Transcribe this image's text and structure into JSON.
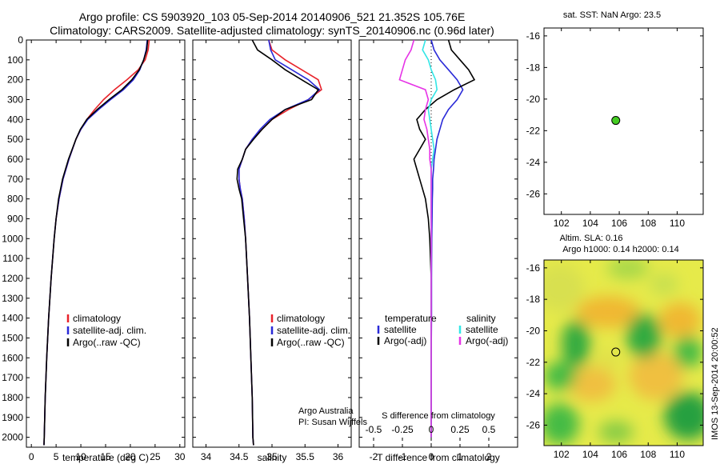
{
  "title_line1": "Argo profile: CS 5903920_103 05-Sep-2014 20140906_521 21.352S 105.76E",
  "title_line2": "Climatology: CARS2009. Satellite-adjusted climatology: synTS_20140906.nc (0.96d later)",
  "side_stamp": "IMOS 13-Sep-2014 20:00:52",
  "map1_title": "sat. SST: NaN Argo: 23.5",
  "map2_title1": "Altim. SLA: 0.16",
  "map2_title2": "Argo h1000: 0.14 h2000: 0.14",
  "credit1": "Argo Australia",
  "credit2": "PI: Susan Wijffels",
  "diff_top_label": "S difference from climatology",
  "colors": {
    "climatology": "#e8232a",
    "satellite": "#2a2ad8",
    "argo": "#000000",
    "sal_sat": "#33e6e6",
    "sal_argo": "#e633e6",
    "argo_dot": "#44cc22"
  },
  "chart_data": [
    {
      "type": "line",
      "xlabel": "temperature (deg C)",
      "ylabel": "",
      "xlim": [
        -1,
        31
      ],
      "ylim": [
        2050,
        0
      ],
      "xticks": [
        0,
        5,
        10,
        15,
        20,
        25,
        30
      ],
      "yticks": [
        0,
        100,
        200,
        300,
        400,
        500,
        600,
        700,
        800,
        900,
        1000,
        1100,
        1200,
        1300,
        1400,
        1500,
        1600,
        1700,
        1800,
        1900,
        2000
      ],
      "legend": [
        "climatology",
        "satellite-adj. clim.",
        "Argo(..raw -QC)"
      ],
      "depth": [
        0,
        50,
        100,
        150,
        200,
        250,
        300,
        350,
        400,
        450,
        500,
        600,
        700,
        800,
        900,
        1000,
        1200,
        1400,
        1600,
        1800,
        2000,
        2040
      ],
      "series": [
        {
          "name": "climatology",
          "values": [
            23.8,
            23.6,
            23.0,
            21.6,
            19.3,
            16.8,
            14.6,
            12.8,
            11.2,
            10.0,
            9.0,
            7.6,
            6.4,
            5.6,
            5.0,
            4.6,
            4.0,
            3.5,
            3.1,
            2.8,
            2.6,
            2.55
          ]
        },
        {
          "name": "satellite-adj. clim.",
          "values": [
            23.4,
            23.2,
            22.7,
            21.9,
            20.6,
            18.6,
            16.0,
            13.6,
            11.4,
            10.0,
            9.0,
            7.6,
            6.4,
            5.6,
            5.0,
            4.6,
            4.0,
            3.5,
            3.1,
            2.8,
            2.6,
            2.55
          ]
        },
        {
          "name": "Argo(..raw -QC)",
          "values": [
            23.5,
            23.3,
            22.7,
            21.8,
            20.3,
            18.3,
            15.7,
            13.3,
            11.2,
            9.9,
            9.0,
            7.5,
            6.3,
            5.5,
            5.0,
            4.6,
            4.0,
            3.5,
            3.1,
            2.8,
            2.6,
            2.55
          ]
        }
      ]
    },
    {
      "type": "line",
      "xlabel": "salinity",
      "xlim": [
        33.8,
        36.2
      ],
      "ylim": [
        2050,
        0
      ],
      "xticks": [
        34,
        34.5,
        35,
        35.5,
        36
      ],
      "legend": [
        "climatology",
        "satellite-adj. clim.",
        "Argo(..raw -QC)"
      ],
      "depth": [
        0,
        50,
        100,
        150,
        200,
        250,
        300,
        350,
        400,
        450,
        500,
        550,
        600,
        650,
        700,
        750,
        800,
        900,
        1000,
        1200,
        1400,
        1600,
        1800,
        2000,
        2040
      ],
      "series": [
        {
          "name": "climatology",
          "values": [
            34.95,
            35.0,
            35.2,
            35.45,
            35.7,
            35.75,
            35.55,
            35.25,
            35.0,
            34.85,
            34.7,
            34.6,
            34.55,
            34.5,
            34.5,
            34.52,
            34.55,
            34.58,
            34.6,
            34.63,
            34.66,
            34.68,
            34.7,
            34.71,
            34.72
          ]
        },
        {
          "name": "satellite-adj. clim.",
          "values": [
            34.95,
            34.98,
            35.05,
            35.3,
            35.55,
            35.72,
            35.55,
            35.2,
            34.97,
            34.82,
            34.7,
            34.6,
            34.55,
            34.5,
            34.5,
            34.52,
            34.55,
            34.58,
            34.6,
            34.63,
            34.66,
            34.68,
            34.7,
            34.71,
            34.72
          ]
        },
        {
          "name": "Argo(..raw -QC)",
          "values": [
            34.7,
            34.78,
            35.0,
            35.2,
            35.45,
            35.7,
            35.6,
            35.2,
            35.0,
            34.85,
            34.72,
            34.6,
            34.55,
            34.48,
            34.47,
            34.5,
            34.54,
            34.57,
            34.6,
            34.63,
            34.66,
            34.68,
            34.7,
            34.71,
            34.72
          ]
        }
      ]
    },
    {
      "type": "line",
      "xlabel": "T difference from climatology",
      "xlim": [
        -2.5,
        3
      ],
      "ylim": [
        2050,
        0
      ],
      "xticks": [
        -2,
        -1,
        0,
        1,
        2
      ],
      "sticks": [
        -0.5,
        -0.25,
        0,
        0.25,
        0.5
      ],
      "slabels": [
        "-0.5",
        "-0.25",
        "0",
        "0.25",
        "0.5"
      ],
      "legend_temp_title": "temperature",
      "legend_sal_title": "salinity",
      "legend_items": [
        "satellite",
        "Argo(-adj)",
        "satellite",
        "Argo(-adj)"
      ],
      "depth": [
        0,
        50,
        100,
        150,
        200,
        250,
        300,
        350,
        400,
        450,
        500,
        550,
        600,
        650,
        700,
        750,
        800,
        900,
        1000,
        1200,
        1400,
        1600,
        1800,
        2000
      ],
      "series": [
        {
          "name": "temperature satellite",
          "values": [
            0,
            0.1,
            0.3,
            0.6,
            0.9,
            1.1,
            0.9,
            0.6,
            0.4,
            0.3,
            0.2,
            0.15,
            0.1,
            0.08,
            0.05,
            0.05,
            0.04,
            0.03,
            0.02,
            0.01,
            0.01,
            0,
            0,
            0
          ]
        },
        {
          "name": "temperature Argo(-adj)",
          "values": [
            0.6,
            0.7,
            1.0,
            1.3,
            1.5,
            0.8,
            0.2,
            -0.2,
            -0.5,
            -0.4,
            -0.2,
            -0.4,
            -0.6,
            -0.5,
            -0.4,
            -0.3,
            -0.2,
            -0.1,
            -0.05,
            0,
            0,
            0,
            0,
            0
          ]
        },
        {
          "name": "salinity satellite",
          "values": [
            -0.2,
            -0.3,
            -0.1,
            0.0,
            0.15,
            0.2,
            0.0,
            -0.1,
            -0.05,
            0.0,
            0.05,
            0.1,
            0.05,
            0.0,
            0.0,
            0.0,
            0.0,
            0.0,
            0.0,
            0.0,
            0.0,
            0.0,
            0.0,
            0.0
          ]
        },
        {
          "name": "salinity Argo(-adj)",
          "values": [
            -0.6,
            -0.7,
            -0.9,
            -1.0,
            -1.1,
            -0.2,
            -0.1,
            -0.2,
            -0.25,
            -0.15,
            -0.1,
            -0.05,
            -0.05,
            0.0,
            0.0,
            0.0,
            0.0,
            0.0,
            0.0,
            0.0,
            0.0,
            0.0,
            0.0,
            0.0
          ]
        }
      ]
    },
    {
      "type": "scatter",
      "title": "sat. SST: NaN Argo: 23.5",
      "xlim": [
        100.8,
        111.8
      ],
      "ylim": [
        -27.3,
        -15.5
      ],
      "xticks": [
        102,
        104,
        106,
        108,
        110
      ],
      "yticks": [
        -16,
        -18,
        -20,
        -22,
        -24,
        -26
      ],
      "points": [
        {
          "x": 105.76,
          "y": -21.352
        }
      ]
    },
    {
      "type": "heatmap",
      "title": "Altim. SLA: 0.16 / Argo h1000: 0.14 h2000: 0.14",
      "xlim": [
        100.8,
        111.8
      ],
      "ylim": [
        -27.3,
        -15.5
      ],
      "xticks": [
        102,
        104,
        106,
        108,
        110
      ],
      "yticks": [
        -16,
        -18,
        -20,
        -22,
        -24,
        -26
      ],
      "points": [
        {
          "x": 105.76,
          "y": -21.352
        }
      ]
    }
  ]
}
